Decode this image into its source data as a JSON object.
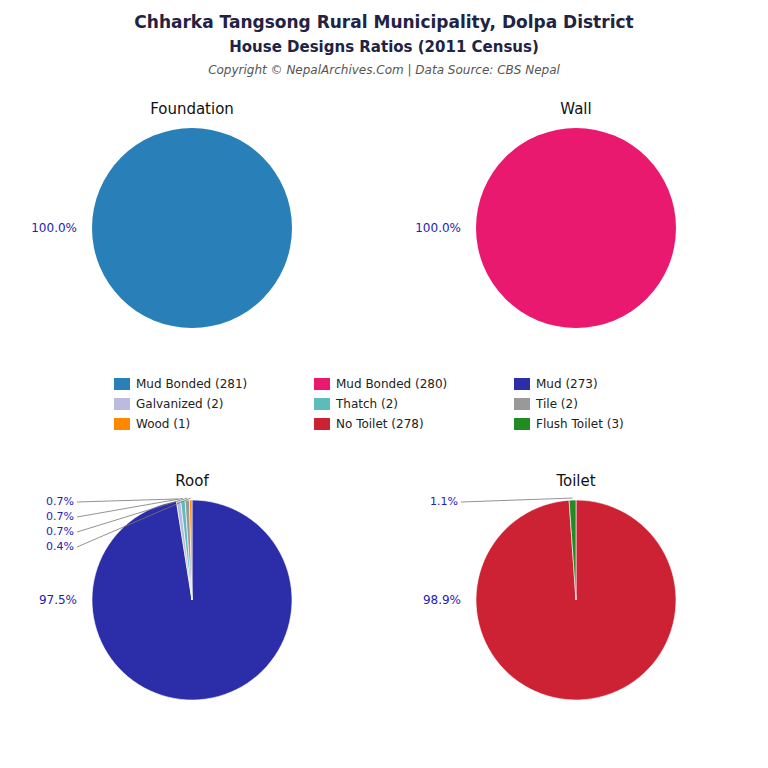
{
  "title": "Chharka Tangsong Rural Municipality, Dolpa District",
  "subtitle": "House Designs Ratios (2011 Census)",
  "annotations": [
    "Copyright © NepalArchives.Com | Data Source: CBS Nepal"
  ],
  "legend": "center",
  "chart_data": [
    {
      "type": "pie",
      "title": "Foundation",
      "categories": [
        "Mud Bonded (281)"
      ],
      "values": [
        100.0
      ],
      "value_labels": [
        "100.0%"
      ],
      "colors": [
        "#2980B9"
      ]
    },
    {
      "type": "pie",
      "title": "Wall",
      "categories": [
        "Mud Bonded (280)"
      ],
      "values": [
        100.0
      ],
      "value_labels": [
        "100.0%"
      ],
      "colors": [
        "#E8196E"
      ]
    },
    {
      "type": "pie",
      "title": "Roof",
      "categories": [
        "Mud (273)",
        "Galvanized (2)",
        "Thatch (2)",
        "Tile (2)",
        "Wood (1)"
      ],
      "values": [
        97.5,
        0.7,
        0.7,
        0.7,
        0.4
      ],
      "value_labels": [
        "97.5%",
        "0.7%",
        "0.7%",
        "0.7%",
        "0.4%"
      ],
      "colors": [
        "#2B2EA8",
        "#BBBBDD",
        "#5BBCBB",
        "#999999",
        "#FF8800"
      ]
    },
    {
      "type": "pie",
      "title": "Toilet",
      "categories": [
        "No Toilet (278)",
        "Flush Toilet (3)"
      ],
      "values": [
        98.9,
        1.1
      ],
      "value_labels": [
        "98.9%",
        "1.1%"
      ],
      "colors": [
        "#CC2233",
        "#228B22"
      ]
    }
  ]
}
